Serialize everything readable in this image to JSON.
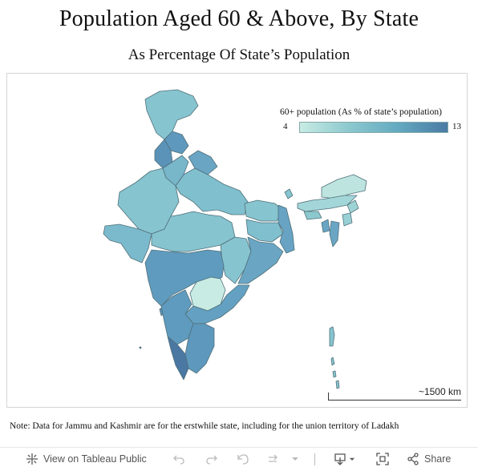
{
  "header": {
    "title": "Population Aged 60 & Above, By State",
    "subtitle": "As Percentage Of State’s Population"
  },
  "map": {
    "legend_title": "60+ population (As % of state’s population)",
    "legend_min": "4",
    "legend_max": "13",
    "scale_label": "~1500 km",
    "colors": {
      "low": "#c8ebe4",
      "mid": "#8cc9cf",
      "midhigh": "#63a9c0",
      "high": "#4a7aa4",
      "border": "#50707a"
    }
  },
  "note": "Note: Data for Jammu and Kashmir are for the erstwhile state, including for the union territory of Ladakh",
  "toolbar": {
    "view_label": "View on Tableau Public",
    "share_label": "Share"
  }
}
